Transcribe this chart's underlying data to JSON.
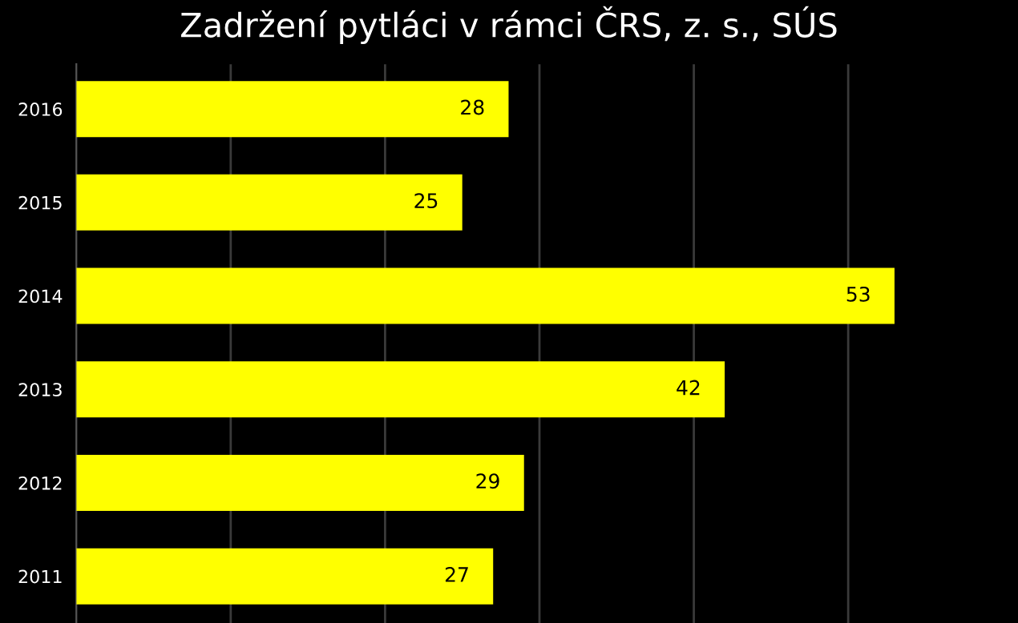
{
  "chart_data": {
    "type": "bar",
    "orientation": "horizontal",
    "title": "Zadržení pytláci v rámci ČRS, z. s., SÚS",
    "categories": [
      "2016",
      "2015",
      "2014",
      "2013",
      "2012",
      "2011"
    ],
    "values": [
      28,
      25,
      53,
      42,
      29,
      27
    ],
    "color": "#ffff00",
    "data_labels": true,
    "xlim": [
      0,
      61
    ],
    "xticks": [
      {
        "value": 10,
        "label": null
      },
      {
        "value": 20,
        "label": null
      },
      {
        "value": 30,
        "label": null
      },
      {
        "value": 40,
        "label": null
      },
      {
        "value": 50,
        "label": null
      }
    ],
    "tick_labels": "y",
    "grid": "x",
    "legend": false
  }
}
